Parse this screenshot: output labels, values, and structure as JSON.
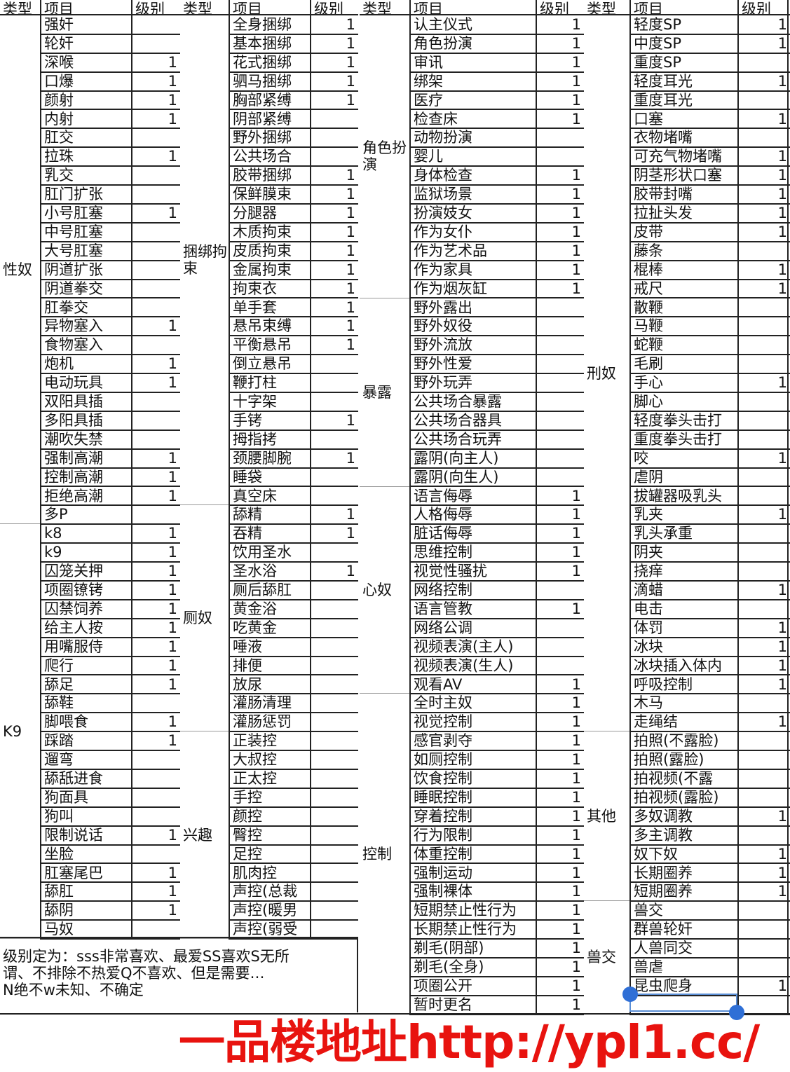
{
  "headers": {
    "type": "类型",
    "item": "项目",
    "level": "级别"
  },
  "groups": [
    {
      "sections": [
        {
          "type": "性奴",
          "rows": [
            [
              "强奸",
              ""
            ],
            [
              "轮奸",
              ""
            ],
            [
              "深喉",
              "1"
            ],
            [
              "口爆",
              "1"
            ],
            [
              "颜射",
              "1"
            ],
            [
              "内射",
              "1"
            ],
            [
              "肛交",
              ""
            ],
            [
              "拉珠",
              "1"
            ],
            [
              "乳交",
              ""
            ],
            [
              "肛门扩张",
              ""
            ],
            [
              "小号肛塞",
              "1"
            ],
            [
              "中号肛塞",
              ""
            ],
            [
              "大号肛塞",
              ""
            ],
            [
              "阴道扩张",
              ""
            ],
            [
              "阴道拳交",
              ""
            ],
            [
              "肛拳交",
              ""
            ],
            [
              "异物塞入",
              "1"
            ],
            [
              "食物塞入",
              ""
            ],
            [
              "炮机",
              "1"
            ],
            [
              "电动玩具",
              "1"
            ],
            [
              "双阳具插",
              ""
            ],
            [
              "多阳具插",
              ""
            ],
            [
              "潮吹失禁",
              ""
            ],
            [
              "强制高潮",
              "1"
            ],
            [
              "控制高潮",
              "1"
            ],
            [
              "拒绝高潮",
              "1"
            ],
            [
              "多P",
              ""
            ]
          ]
        },
        {
          "type": "K9",
          "rows": [
            [
              "k8",
              "1"
            ],
            [
              "k9",
              "1"
            ],
            [
              "囚笼关押",
              "1"
            ],
            [
              "项圈镣铐",
              "1"
            ],
            [
              "囚禁饲养",
              "1"
            ],
            [
              "给主人按",
              "1"
            ],
            [
              "用嘴服侍",
              "1"
            ],
            [
              "爬行",
              "1"
            ],
            [
              "舔足",
              "1"
            ],
            [
              "舔鞋",
              ""
            ],
            [
              "脚喂食",
              "1"
            ],
            [
              "踩踏",
              "1"
            ],
            [
              "遛弯",
              ""
            ],
            [
              "舔舐进食",
              ""
            ],
            [
              "狗面具",
              ""
            ],
            [
              "狗叫",
              ""
            ],
            [
              "限制说话",
              "1"
            ],
            [
              "坐脸",
              ""
            ],
            [
              "肛塞尾巴",
              "1"
            ],
            [
              "舔肛",
              "1"
            ],
            [
              "舔阴",
              "1"
            ],
            [
              "马奴",
              ""
            ]
          ]
        }
      ]
    },
    {
      "sections": [
        {
          "type": "捆绑拘束",
          "rows": [
            [
              "全身捆绑",
              "1"
            ],
            [
              "基本捆绑",
              "1"
            ],
            [
              "花式捆绑",
              "1"
            ],
            [
              "驷马捆绑",
              "1"
            ],
            [
              "胸部紧缚",
              "1"
            ],
            [
              "阴部紧缚",
              ""
            ],
            [
              "野外捆绑",
              ""
            ],
            [
              "公共场合",
              ""
            ],
            [
              "胶带捆绑",
              "1"
            ],
            [
              "保鲜膜束",
              "1"
            ],
            [
              "分腿器",
              "1"
            ],
            [
              "木质拘束",
              "1"
            ],
            [
              "皮质拘束",
              "1"
            ],
            [
              "金属拘束",
              "1"
            ],
            [
              "拘束衣",
              "1"
            ],
            [
              "单手套",
              "1"
            ],
            [
              "悬吊束缚",
              "1"
            ],
            [
              "平衡悬吊",
              "1"
            ],
            [
              "倒立悬吊",
              ""
            ],
            [
              "鞭打柱",
              ""
            ],
            [
              "十字架",
              ""
            ],
            [
              "手铐",
              "1"
            ],
            [
              "拇指拷",
              ""
            ],
            [
              "颈腰脚腕",
              "1"
            ],
            [
              "睡袋",
              ""
            ],
            [
              "真空床",
              ""
            ]
          ]
        },
        {
          "type": "厕奴",
          "rows": [
            [
              "舔精",
              "1"
            ],
            [
              "吞精",
              "1"
            ],
            [
              "饮用圣水",
              ""
            ],
            [
              "圣水浴",
              "1"
            ],
            [
              "厕后舔肛",
              ""
            ],
            [
              "黄金浴",
              ""
            ],
            [
              "吃黄金",
              ""
            ],
            [
              "唾液",
              ""
            ],
            [
              "排便",
              ""
            ],
            [
              "放尿",
              ""
            ],
            [
              "灌肠清理",
              ""
            ],
            [
              "灌肠惩罚",
              ""
            ]
          ]
        },
        {
          "type": "兴趣",
          "rows": [
            [
              "正装控",
              ""
            ],
            [
              "大叔控",
              ""
            ],
            [
              "正太控",
              ""
            ],
            [
              "手控",
              ""
            ],
            [
              "颜控",
              ""
            ],
            [
              "臀控",
              ""
            ],
            [
              "足控",
              ""
            ],
            [
              "肌肉控",
              ""
            ],
            [
              "声控(总裁",
              ""
            ],
            [
              "声控(暖男",
              ""
            ],
            [
              "声控(弱受",
              ""
            ]
          ]
        }
      ]
    },
    {
      "sections": [
        {
          "type": "角色扮演",
          "rows": [
            [
              "认主仪式",
              "1"
            ],
            [
              "角色扮演",
              "1"
            ],
            [
              "审讯",
              "1"
            ],
            [
              "绑架",
              "1"
            ],
            [
              "医疗",
              "1"
            ],
            [
              "检查床",
              "1"
            ],
            [
              "动物扮演",
              ""
            ],
            [
              "婴儿",
              ""
            ],
            [
              "身体检查",
              "1"
            ],
            [
              "监狱场景",
              "1"
            ],
            [
              "扮演妓女",
              "1"
            ],
            [
              "作为女仆",
              "1"
            ],
            [
              "作为艺术品",
              "1"
            ],
            [
              "作为家具",
              "1"
            ],
            [
              "作为烟灰缸",
              "1"
            ]
          ]
        },
        {
          "type": "暴露",
          "rows": [
            [
              "野外露出",
              ""
            ],
            [
              "野外奴役",
              ""
            ],
            [
              "野外流放",
              ""
            ],
            [
              "野外性爱",
              ""
            ],
            [
              "野外玩弄",
              ""
            ],
            [
              "公共场合暴露",
              ""
            ],
            [
              "公共场合器具",
              ""
            ],
            [
              "公共场合玩弄",
              ""
            ],
            [
              "露阴(向主人)",
              ""
            ],
            [
              "露阴(向生人)",
              ""
            ]
          ]
        },
        {
          "type": "心奴",
          "rows": [
            [
              "语言侮辱",
              "1"
            ],
            [
              "人格侮辱",
              "1"
            ],
            [
              "脏话侮辱",
              "1"
            ],
            [
              "思维控制",
              "1"
            ],
            [
              "视觉性骚扰",
              "1"
            ],
            [
              "网络控制",
              ""
            ],
            [
              "语言管教",
              "1"
            ],
            [
              "网络公调",
              ""
            ],
            [
              "视频表演(主人)",
              ""
            ],
            [
              "视频表演(生人)",
              ""
            ],
            [
              "观看AV",
              "1"
            ]
          ]
        },
        {
          "type": "控制",
          "rows": [
            [
              "全时主奴",
              "1"
            ],
            [
              "视觉控制",
              "1"
            ],
            [
              "感官剥夺",
              "1"
            ],
            [
              "如厕控制",
              "1"
            ],
            [
              "饮食控制",
              "1"
            ],
            [
              "睡眠控制",
              "1"
            ],
            [
              "穿着控制",
              "1"
            ],
            [
              "行为限制",
              "1"
            ],
            [
              "体重控制",
              "1"
            ],
            [
              "强制运动",
              "1"
            ],
            [
              "强制裸体",
              "1"
            ],
            [
              "短期禁止性行为",
              "1"
            ],
            [
              "长期禁止性行为",
              "1"
            ],
            [
              "剃毛(阴部)",
              "1"
            ],
            [
              "剃毛(全身)",
              "1"
            ],
            [
              "项圈公开",
              "1"
            ],
            [
              "暂时更名",
              "1"
            ]
          ]
        }
      ]
    },
    {
      "sections": [
        {
          "type": "刑奴",
          "rows": [
            [
              "轻度SP",
              "1"
            ],
            [
              "中度SP",
              "1"
            ],
            [
              "重度SP",
              ""
            ],
            [
              "轻度耳光",
              "1"
            ],
            [
              "重度耳光",
              ""
            ],
            [
              "口塞",
              "1"
            ],
            [
              "衣物堵嘴",
              ""
            ],
            [
              "可充气物堵嘴",
              "1"
            ],
            [
              "阴茎形状口塞",
              "1"
            ],
            [
              "胶带封嘴",
              "1"
            ],
            [
              "拉扯头发",
              "1"
            ],
            [
              "皮带",
              "1"
            ],
            [
              "藤条",
              ""
            ],
            [
              "棍棒",
              "1"
            ],
            [
              "戒尺",
              "1"
            ],
            [
              "散鞭",
              ""
            ],
            [
              "马鞭",
              ""
            ],
            [
              "蛇鞭",
              ""
            ],
            [
              "毛刷",
              ""
            ],
            [
              "手心",
              "1"
            ],
            [
              "脚心",
              ""
            ],
            [
              "轻度拳头击打",
              ""
            ],
            [
              "重度拳头击打",
              ""
            ],
            [
              "咬",
              "1"
            ],
            [
              "虐阴",
              ""
            ],
            [
              "拔罐器吸乳头",
              ""
            ],
            [
              "乳夹",
              "1"
            ],
            [
              "乳头承重",
              ""
            ],
            [
              "阴夹",
              ""
            ],
            [
              "挠痒",
              ""
            ],
            [
              "滴蜡",
              "1"
            ],
            [
              "电击",
              ""
            ],
            [
              "体罚",
              "1"
            ],
            [
              "冰块",
              "1"
            ],
            [
              "冰块插入体内",
              "1"
            ],
            [
              "呼吸控制",
              "1"
            ],
            [
              "木马",
              ""
            ],
            [
              "走绳结",
              "1"
            ]
          ]
        },
        {
          "type": "其他",
          "rows": [
            [
              "拍照(不露脸)",
              ""
            ],
            [
              "拍照(露脸)",
              ""
            ],
            [
              "拍视频(不露",
              ""
            ],
            [
              "拍视频(露脸)",
              ""
            ],
            [
              "多奴调教",
              "1"
            ],
            [
              "多主调教",
              ""
            ],
            [
              "奴下奴",
              "1"
            ],
            [
              "长期圈养",
              "1"
            ],
            [
              "短期圈养",
              "1"
            ]
          ]
        },
        {
          "type": "兽交",
          "rows": [
            [
              "兽交",
              ""
            ],
            [
              "群兽轮奸",
              ""
            ],
            [
              "人兽同交",
              ""
            ],
            [
              "兽虐",
              ""
            ],
            [
              "昆虫爬身",
              "1"
            ],
            [
              "",
              ""
            ]
          ]
        }
      ]
    }
  ],
  "note": {
    "line1": "级别定为：sss非常喜欢、最爱SS喜欢S无所",
    "line2": "谓、不排除不热爱Q不喜欢、但是需要…",
    "line3": "N绝不w未知、不确定"
  },
  "watermark": "一品楼地址http://ypl1.cc/"
}
